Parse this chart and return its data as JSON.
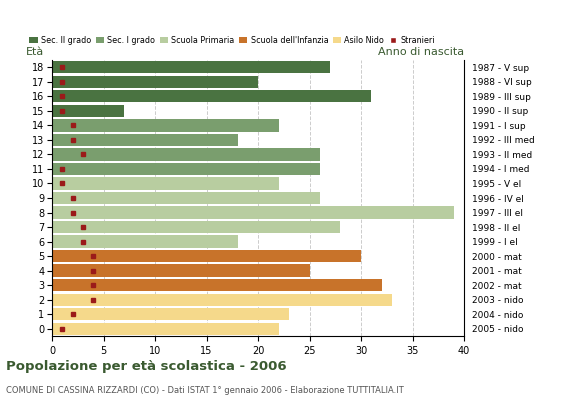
{
  "ages": [
    18,
    17,
    16,
    15,
    14,
    13,
    12,
    11,
    10,
    9,
    8,
    7,
    6,
    5,
    4,
    3,
    2,
    1,
    0
  ],
  "years": [
    "1987 - V sup",
    "1988 - VI sup",
    "1989 - III sup",
    "1990 - II sup",
    "1991 - I sup",
    "1992 - III med",
    "1993 - II med",
    "1994 - I med",
    "1995 - V el",
    "1996 - IV el",
    "1997 - III el",
    "1998 - II el",
    "1999 - I el",
    "2000 - mat",
    "2001 - mat",
    "2002 - mat",
    "2003 - nido",
    "2004 - nido",
    "2005 - nido"
  ],
  "bar_values": [
    27,
    20,
    31,
    7,
    22,
    18,
    26,
    26,
    22,
    26,
    39,
    28,
    18,
    30,
    25,
    32,
    33,
    23,
    22
  ],
  "stranieri": [
    1,
    1,
    1,
    1,
    2,
    2,
    3,
    1,
    1,
    2,
    2,
    3,
    3,
    4,
    4,
    4,
    4,
    2,
    1
  ],
  "categories": [
    "Sec. II grado",
    "Sec. I grado",
    "Scuola Primaria",
    "Scuola dell'Infanzia",
    "Asilo Nido"
  ],
  "bar_colors": {
    "Sec. II grado": "#4a7341",
    "Sec. I grado": "#7a9e6e",
    "Scuola Primaria": "#b8cda0",
    "Scuola dell'Infanzia": "#c8732a",
    "Asilo Nido": "#f5d98b"
  },
  "age_to_category": {
    "18": "Sec. II grado",
    "17": "Sec. II grado",
    "16": "Sec. II grado",
    "15": "Sec. II grado",
    "14": "Sec. I grado",
    "13": "Sec. I grado",
    "12": "Sec. I grado",
    "11": "Sec. I grado",
    "10": "Scuola Primaria",
    "9": "Scuola Primaria",
    "8": "Scuola Primaria",
    "7": "Scuola Primaria",
    "6": "Scuola Primaria",
    "5": "Scuola dell'Infanzia",
    "4": "Scuola dell'Infanzia",
    "3": "Scuola dell'Infanzia",
    "2": "Asilo Nido",
    "1": "Asilo Nido",
    "0": "Asilo Nido"
  },
  "stranieri_color": "#9b1a1a",
  "title": "Popolazione per età scolastica - 2006",
  "subtitle": "COMUNE DI CASSINA RIZZARDI (CO) - Dati ISTAT 1° gennaio 2006 - Elaborazione TUTTITALIA.IT",
  "xlabel_left": "Età",
  "xlabel_right": "Anno di nascita",
  "xlim": [
    0,
    40
  ],
  "xticks": [
    0,
    5,
    10,
    15,
    20,
    25,
    30,
    35,
    40
  ],
  "background_color": "#ffffff",
  "grid_color": "#cccccc"
}
